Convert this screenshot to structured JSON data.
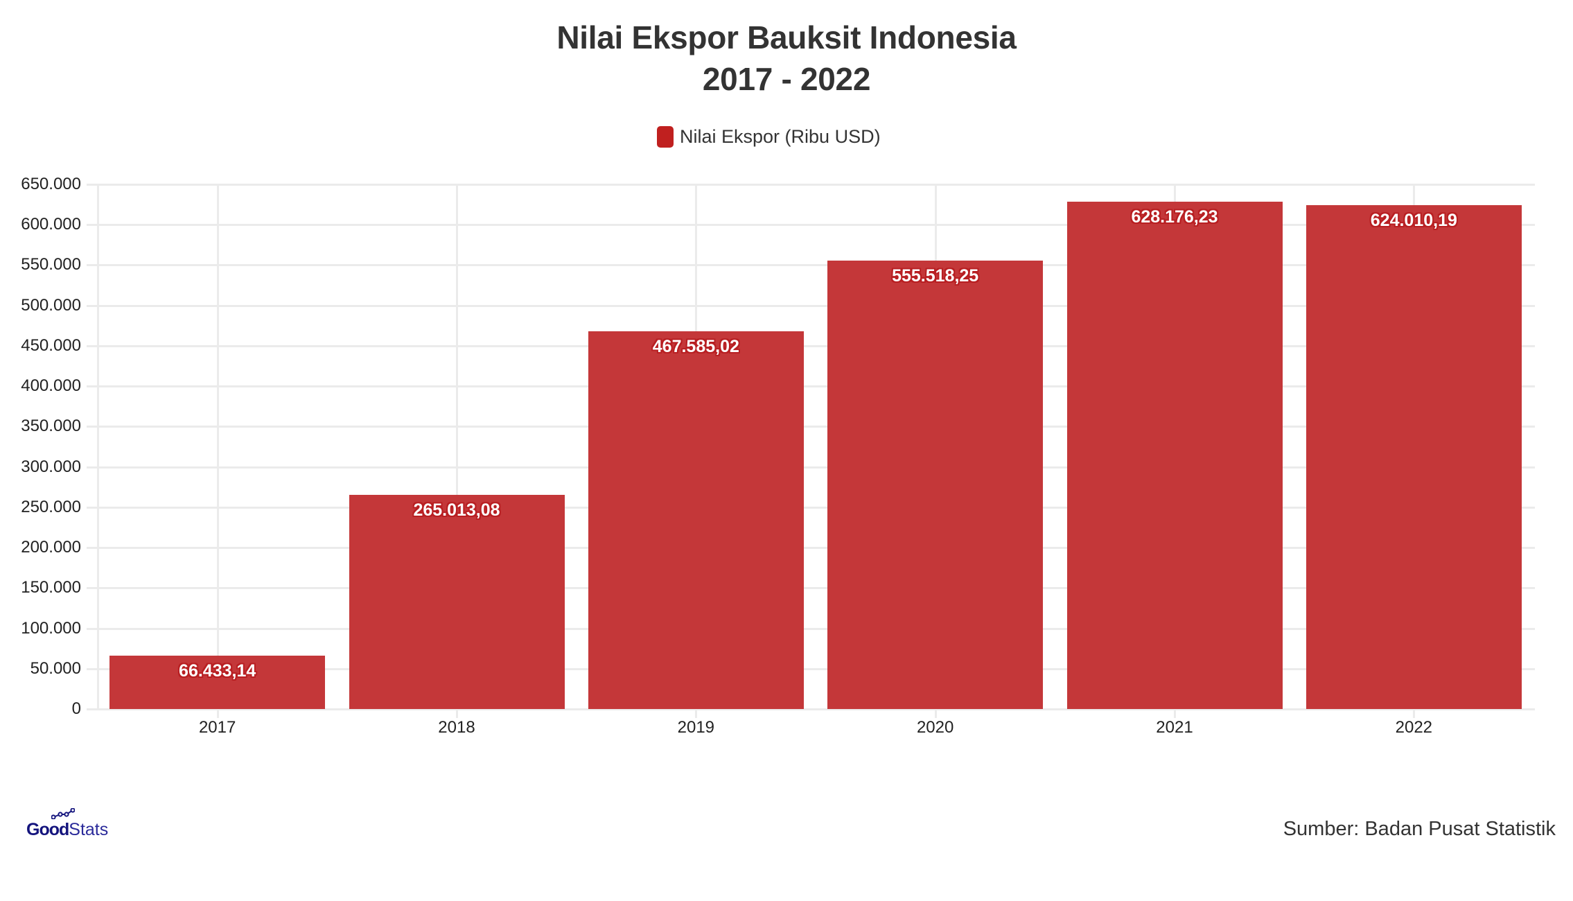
{
  "header": {
    "title_line1": "Nilai Ekspor Bauksit Indonesia",
    "title_line2": "2017 - 2022"
  },
  "legend": {
    "label": "Nilai Ekspor (Ribu USD)",
    "color": "#c0201f"
  },
  "colors": {
    "bar": "#c43739",
    "grid": "#ebebeb",
    "label_outline": "#b81f22",
    "logo": "#14147d"
  },
  "y_axis": {
    "ticks": [
      "0",
      "50.000",
      "100.000",
      "150.000",
      "200.000",
      "250.000",
      "300.000",
      "350.000",
      "400.000",
      "450.000",
      "500.000",
      "550.000",
      "600.000",
      "650.000"
    ]
  },
  "bars": [
    {
      "year": "2017",
      "value": 66433.14,
      "label": "66.433,14"
    },
    {
      "year": "2018",
      "value": 265013.08,
      "label": "265.013,08"
    },
    {
      "year": "2019",
      "value": 467585.02,
      "label": "467.585,02"
    },
    {
      "year": "2020",
      "value": 555518.25,
      "label": "555.518,25"
    },
    {
      "year": "2021",
      "value": 628176.23,
      "label": "628.176,23"
    },
    {
      "year": "2022",
      "value": 624010.19,
      "label": "624.010,19"
    }
  ],
  "footer": {
    "logo_good": "Good",
    "logo_stats": "Stats",
    "source": "Sumber: Badan Pusat Statistik"
  },
  "chart_data": {
    "type": "bar",
    "title": "Nilai Ekspor Bauksit Indonesia 2017 - 2022",
    "categories": [
      "2017",
      "2018",
      "2019",
      "2020",
      "2021",
      "2022"
    ],
    "series": [
      {
        "name": "Nilai Ekspor (Ribu USD)",
        "values": [
          66433.14,
          265013.08,
          467585.02,
          555518.25,
          628176.23,
          624010.19
        ]
      }
    ],
    "data_labels": [
      "66.433,14",
      "265.013,08",
      "467.585,02",
      "555.518,25",
      "628.176,23",
      "624.010,19"
    ],
    "xlabel": "",
    "ylabel": "",
    "ylim": [
      0,
      650000
    ],
    "y_ticks": [
      0,
      50000,
      100000,
      150000,
      200000,
      250000,
      300000,
      350000,
      400000,
      450000,
      500000,
      550000,
      600000,
      650000
    ],
    "grid": true,
    "legend_position": "top-center",
    "source": "Sumber: Badan Pusat Statistik"
  }
}
